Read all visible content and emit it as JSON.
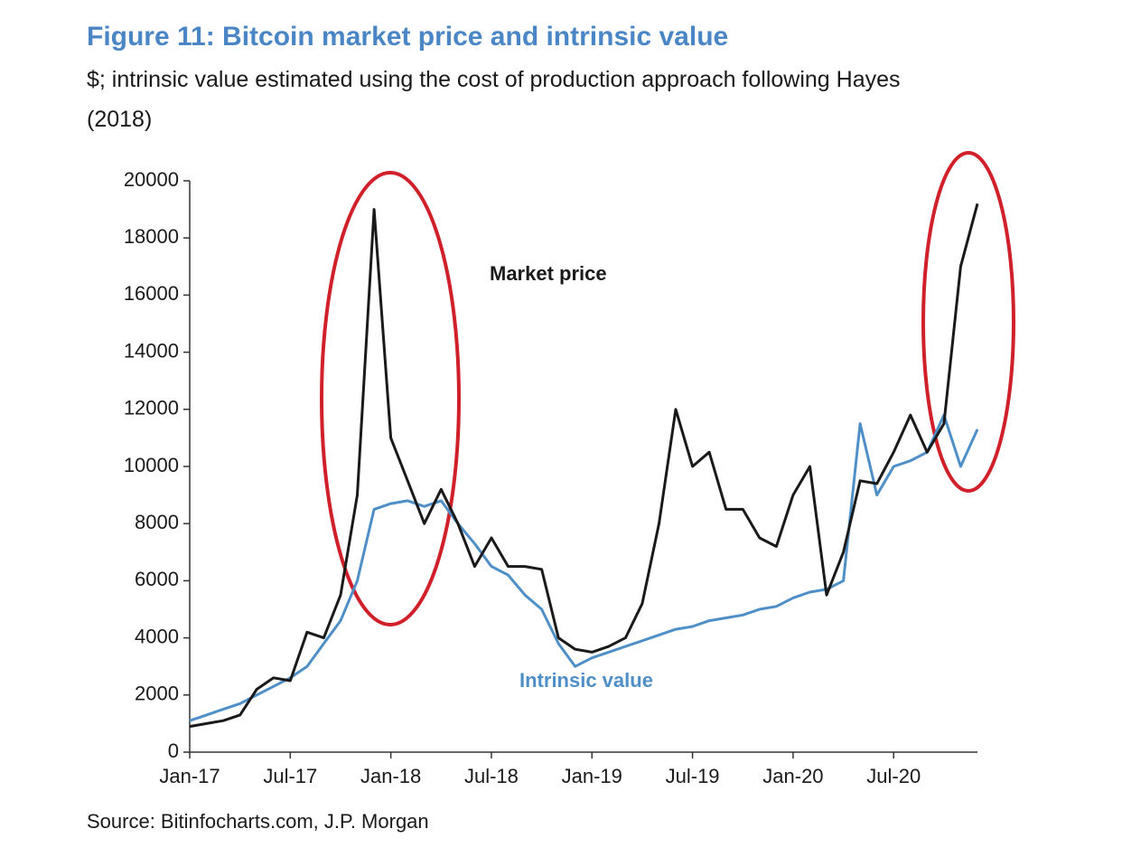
{
  "chart_data": {
    "type": "line",
    "title": "Figure 11: Bitcoin market price and intrinsic value",
    "subtitle": "$; intrinsic value estimated using the cost of production approach following Hayes (2018)",
    "source": "Source: Bitinfocharts.com, J.P. Morgan",
    "annotations": [
      "Market price",
      "Intrinsic value"
    ],
    "categories": [
      "Jan-17",
      null,
      null,
      null,
      null,
      null,
      "Jul-17",
      null,
      null,
      null,
      null,
      null,
      "Jan-18",
      null,
      null,
      null,
      null,
      null,
      "Jul-18",
      null,
      null,
      null,
      null,
      null,
      "Jan-19",
      null,
      null,
      null,
      null,
      null,
      "Jul-19",
      null,
      null,
      null,
      null,
      null,
      "Jan-20",
      null,
      null,
      null,
      null,
      null,
      "Jul-20",
      null,
      null,
      null,
      null,
      null
    ],
    "series": [
      {
        "name": "Market price",
        "color": "#1a1a1a",
        "values": [
          900,
          1000,
          1100,
          1300,
          2200,
          2600,
          2500,
          4200,
          4000,
          5500,
          9000,
          19000,
          11000,
          9500,
          8000,
          9200,
          8000,
          6500,
          7500,
          6500,
          6500,
          6400,
          4000,
          3600,
          3500,
          3700,
          4000,
          5200,
          8000,
          12000,
          10000,
          10500,
          8500,
          8500,
          7500,
          7200,
          9000,
          10000,
          5500,
          7000,
          9500,
          9400,
          10500,
          11800,
          10500,
          11500,
          17000,
          19200
        ]
      },
      {
        "name": "Intrinsic value",
        "color": "#4f8fc8",
        "values": [
          1100,
          1300,
          1500,
          1700,
          2000,
          2300,
          2600,
          3000,
          3800,
          4600,
          6000,
          8500,
          8700,
          8800,
          8600,
          8800,
          8000,
          7300,
          6500,
          6200,
          5500,
          5000,
          3800,
          3000,
          3300,
          3500,
          3700,
          3900,
          4100,
          4300,
          4400,
          4600,
          4700,
          4800,
          5000,
          5100,
          5400,
          5600,
          5700,
          6000,
          11500,
          9000,
          10000,
          10200,
          10500,
          11800,
          10000,
          11300
        ]
      }
    ],
    "ylim": [
      0,
      20000
    ],
    "yticks": [
      0,
      2000,
      4000,
      6000,
      8000,
      10000,
      12000,
      14000,
      16000,
      18000,
      20000
    ],
    "grid": false
  }
}
